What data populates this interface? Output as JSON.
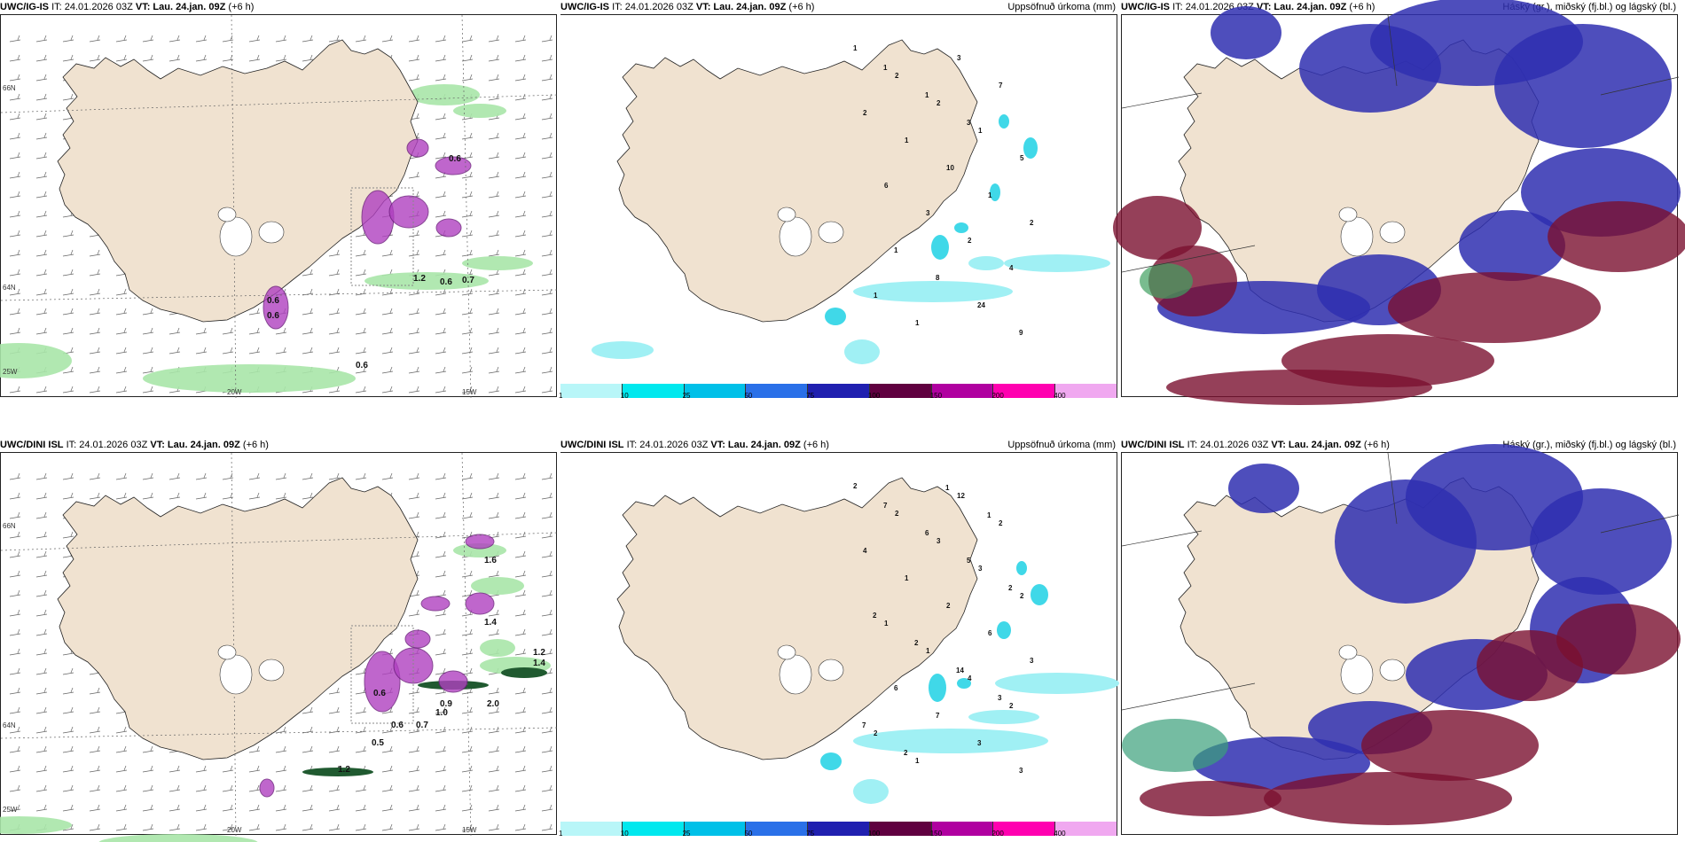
{
  "colors": {
    "land": "#f0e2d0",
    "sea": "#ffffff",
    "precip_cyan": "#a0f0f4",
    "magenta": "#b040c0",
    "green": "#a8e6a8",
    "dark_green": "#205a30",
    "navy": "#2f2fb0",
    "maroon": "#7a1030",
    "bright_blue": "#2a6cff"
  },
  "shared": {
    "it_label": "IT: 24.01.2026 03Z",
    "vt_label": "VT: Lau. 24.jan. 09Z",
    "lead_label": "(+6 h)",
    "lat_labels": [
      "66N",
      "64N"
    ],
    "lon_labels": [
      "25W",
      "20W",
      "15W"
    ]
  },
  "top_row": {
    "model": "UWC/IG-IS",
    "panel_left": {
      "labels": [
        "0.6",
        "0.6",
        "0.7",
        "0.6",
        "1.2",
        "0.6",
        "0.6"
      ]
    },
    "panel_mid": {
      "title_right": "Uppsöfnuð úrkoma (mm)",
      "labels": [
        "1",
        "2",
        "2",
        "1",
        "5",
        "6",
        "3",
        "2",
        "4",
        "1",
        "1",
        "3",
        "7",
        "2",
        "1",
        "10",
        "1",
        "2",
        "1",
        "8",
        "24",
        "9",
        "1",
        "1",
        "3"
      ]
    },
    "panel_right": {
      "title_right": "Háský (gr.), miðský (fj.bl.) og lágský (bl.)"
    }
  },
  "bottom_row": {
    "model": "UWC/DINI ISL",
    "panel_left": {
      "labels": [
        "1.6",
        "1.4",
        "1.2",
        "1.4",
        "0.6",
        "0.9",
        "0.5",
        "2.0",
        "1.0",
        "0.7",
        "1.2",
        "0.6"
      ]
    },
    "panel_mid": {
      "title_right": "Uppsöfnuð úrkoma (mm)",
      "labels": [
        "2",
        "2",
        "3",
        "3",
        "2",
        "1",
        "1",
        "4",
        "2",
        "2",
        "1",
        "12",
        "2",
        "4",
        "1",
        "2",
        "6",
        "3",
        "6",
        "7",
        "3",
        "3",
        "7",
        "6",
        "5",
        "2",
        "2",
        "2",
        "14",
        "3",
        "7",
        "2",
        "1",
        "1"
      ]
    },
    "panel_right": {
      "title_right": "Háský (gr.), miðský (fj.bl.) og lágský (bl.)"
    }
  },
  "colorbar": {
    "ticks": [
      "1",
      "10",
      "25",
      "50",
      "75",
      "100",
      "150",
      "200",
      "400"
    ],
    "colors": [
      "#b8f6f8",
      "#00e8ee",
      "#00c0e8",
      "#2a70e8",
      "#2020b0",
      "#600040",
      "#b000a0",
      "#ff00b0",
      "#f0a8f0"
    ]
  }
}
